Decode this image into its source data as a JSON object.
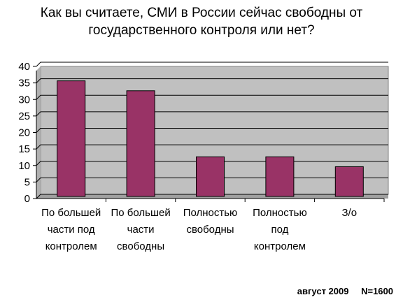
{
  "chart_data": {
    "type": "bar",
    "title_lines": [
      "Как вы считаете, СМИ в России сейчас свободны от",
      "государственного контроля или нет?"
    ],
    "categories": [
      [
        "По большей",
        "части под",
        "контролем"
      ],
      [
        "По большей",
        "части",
        "свободны"
      ],
      [
        "Полностью",
        "свободны"
      ],
      [
        "Полностью",
        "под",
        "контролем"
      ],
      [
        "З/о"
      ]
    ],
    "values": [
      35,
      32,
      12,
      12,
      9
    ],
    "ylim": [
      0,
      40
    ],
    "yticks": [
      0,
      5,
      10,
      15,
      20,
      25,
      30,
      35,
      40
    ],
    "grid": true,
    "bar_color": "#993366",
    "plot_bg": "#c0c0c0"
  },
  "footer": {
    "date": "август 2009",
    "sample": "N=1600"
  }
}
